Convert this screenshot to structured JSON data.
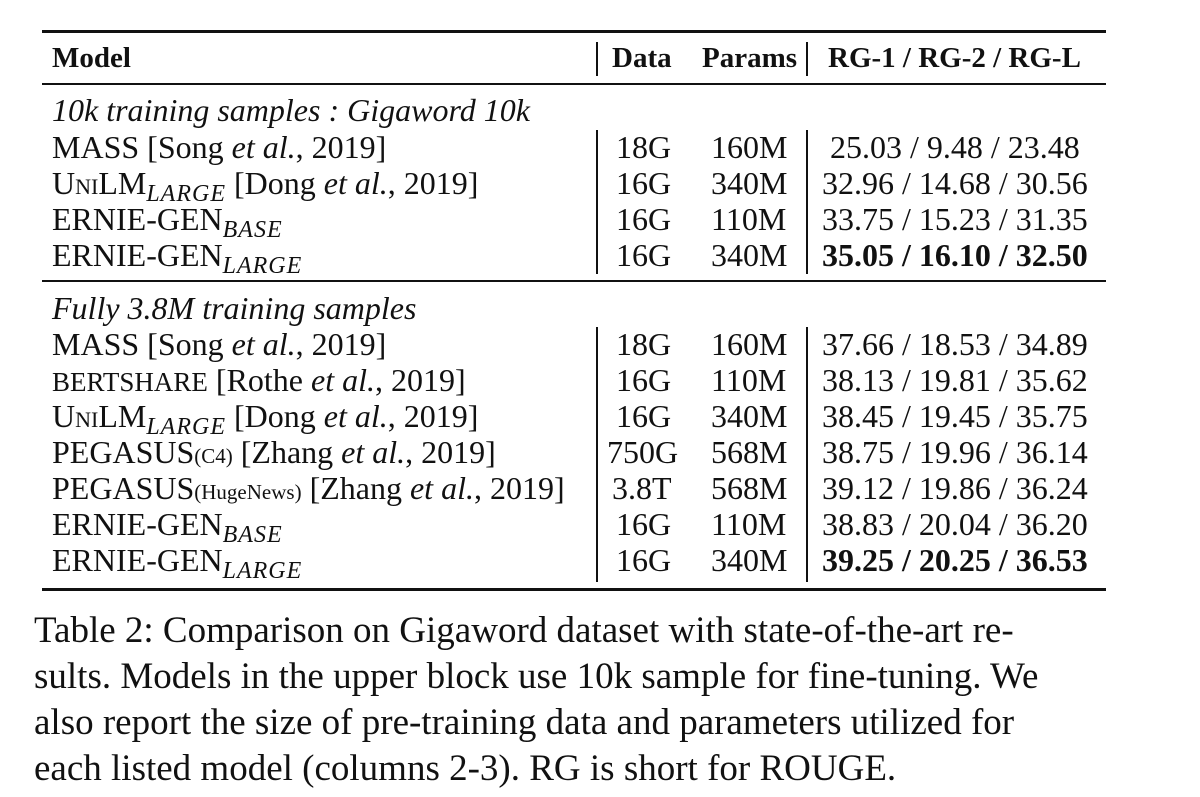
{
  "table": {
    "headers": {
      "model": "Model",
      "data": "Data",
      "params": "Params",
      "rg": "RG-1 / RG-2 / RG-L"
    },
    "groups": [
      {
        "title": "10k training samples : Gigaword 10k",
        "rows": [
          {
            "model": "MASS [Song ",
            "model_ital": "et al.",
            "model_tail": ", 2019]",
            "data": "18G",
            "params": "160M",
            "rg": "25.03 / 9.48 / 23.48"
          },
          {
            "model_u": "U",
            "model_sc": "NI",
            "model": "LM",
            "sub": "LARGE",
            "model_tail": " [Dong ",
            "model_ital": "et al.",
            "model_end": ", 2019]",
            "data": "16G",
            "params": "340M",
            "rg": "32.96 / 14.68 / 30.56"
          },
          {
            "model": "ERNIE-GEN",
            "sub": "BASE",
            "data": "16G",
            "params": "110M",
            "rg": "33.75 / 15.23 / 31.35"
          },
          {
            "model": "ERNIE-GEN",
            "sub": "LARGE",
            "data": "16G",
            "params": "340M",
            "rg": "35.05 / 16.10 / 32.50"
          }
        ]
      },
      {
        "title": "Fully 3.8M training samples",
        "rows": [
          {
            "model": "MASS [Song ",
            "model_ital": "et al.",
            "model_tail": ", 2019]",
            "data": "18G",
            "params": "160M",
            "rg": "37.66 / 18.53 / 34.89"
          },
          {
            "model_sc": "BERTSHARE",
            "model_tail": " [Rothe ",
            "model_ital": "et al.",
            "model_end": ", 2019]",
            "data": "16G",
            "params": "110M",
            "rg": "38.13 / 19.81 / 35.62"
          },
          {
            "model_u": "U",
            "model_sc": "NI",
            "model": "LM",
            "sub": "LARGE",
            "model_tail": " [Dong ",
            "model_ital": "et al.",
            "model_end": ", 2019]",
            "data": "16G",
            "params": "340M",
            "rg": "38.45 / 19.45 / 35.75"
          },
          {
            "model": "PEGASUS",
            "tiny": "(C4)",
            "model_tail": " [Zhang ",
            "model_ital": "et al.",
            "model_end": ", 2019]",
            "data": "750G",
            "params": "568M",
            "rg": "38.75 / 19.96 / 36.14"
          },
          {
            "model": "PEGASUS",
            "tiny": "(HugeNews)",
            "model_tail": " [Zhang ",
            "model_ital": "et al.",
            "model_end": ", 2019]",
            "data": "3.8T",
            "params": "568M",
            "rg": "39.12 / 19.86 / 36.24"
          },
          {
            "model": "ERNIE-GEN",
            "sub": "BASE",
            "data": "16G",
            "params": "110M",
            "rg": "38.83 / 20.04 / 36.20"
          },
          {
            "model": "ERNIE-GEN",
            "sub": "LARGE",
            "data": "16G",
            "params": "340M",
            "rg": "39.25 / 20.25 / 36.53"
          }
        ]
      }
    ]
  },
  "caption": "Table 2: Comparison on Gigaword dataset with state-of-the-art re-sults. Models in the upper block use 10k sample for fine-tuning. We also report the size of pre-training data and parameters utilized for each listed model (columns 2-3). RG is short for ROUGE.",
  "caption_lines": [
    "Table 2: Comparison on Gigaword dataset with state-of-the-art re-",
    "sults. Models in the upper block use 10k sample for fine-tuning. We",
    "also report the size of pre-training data and parameters utilized for",
    "each listed model (columns 2-3). RG is short for ROUGE."
  ]
}
